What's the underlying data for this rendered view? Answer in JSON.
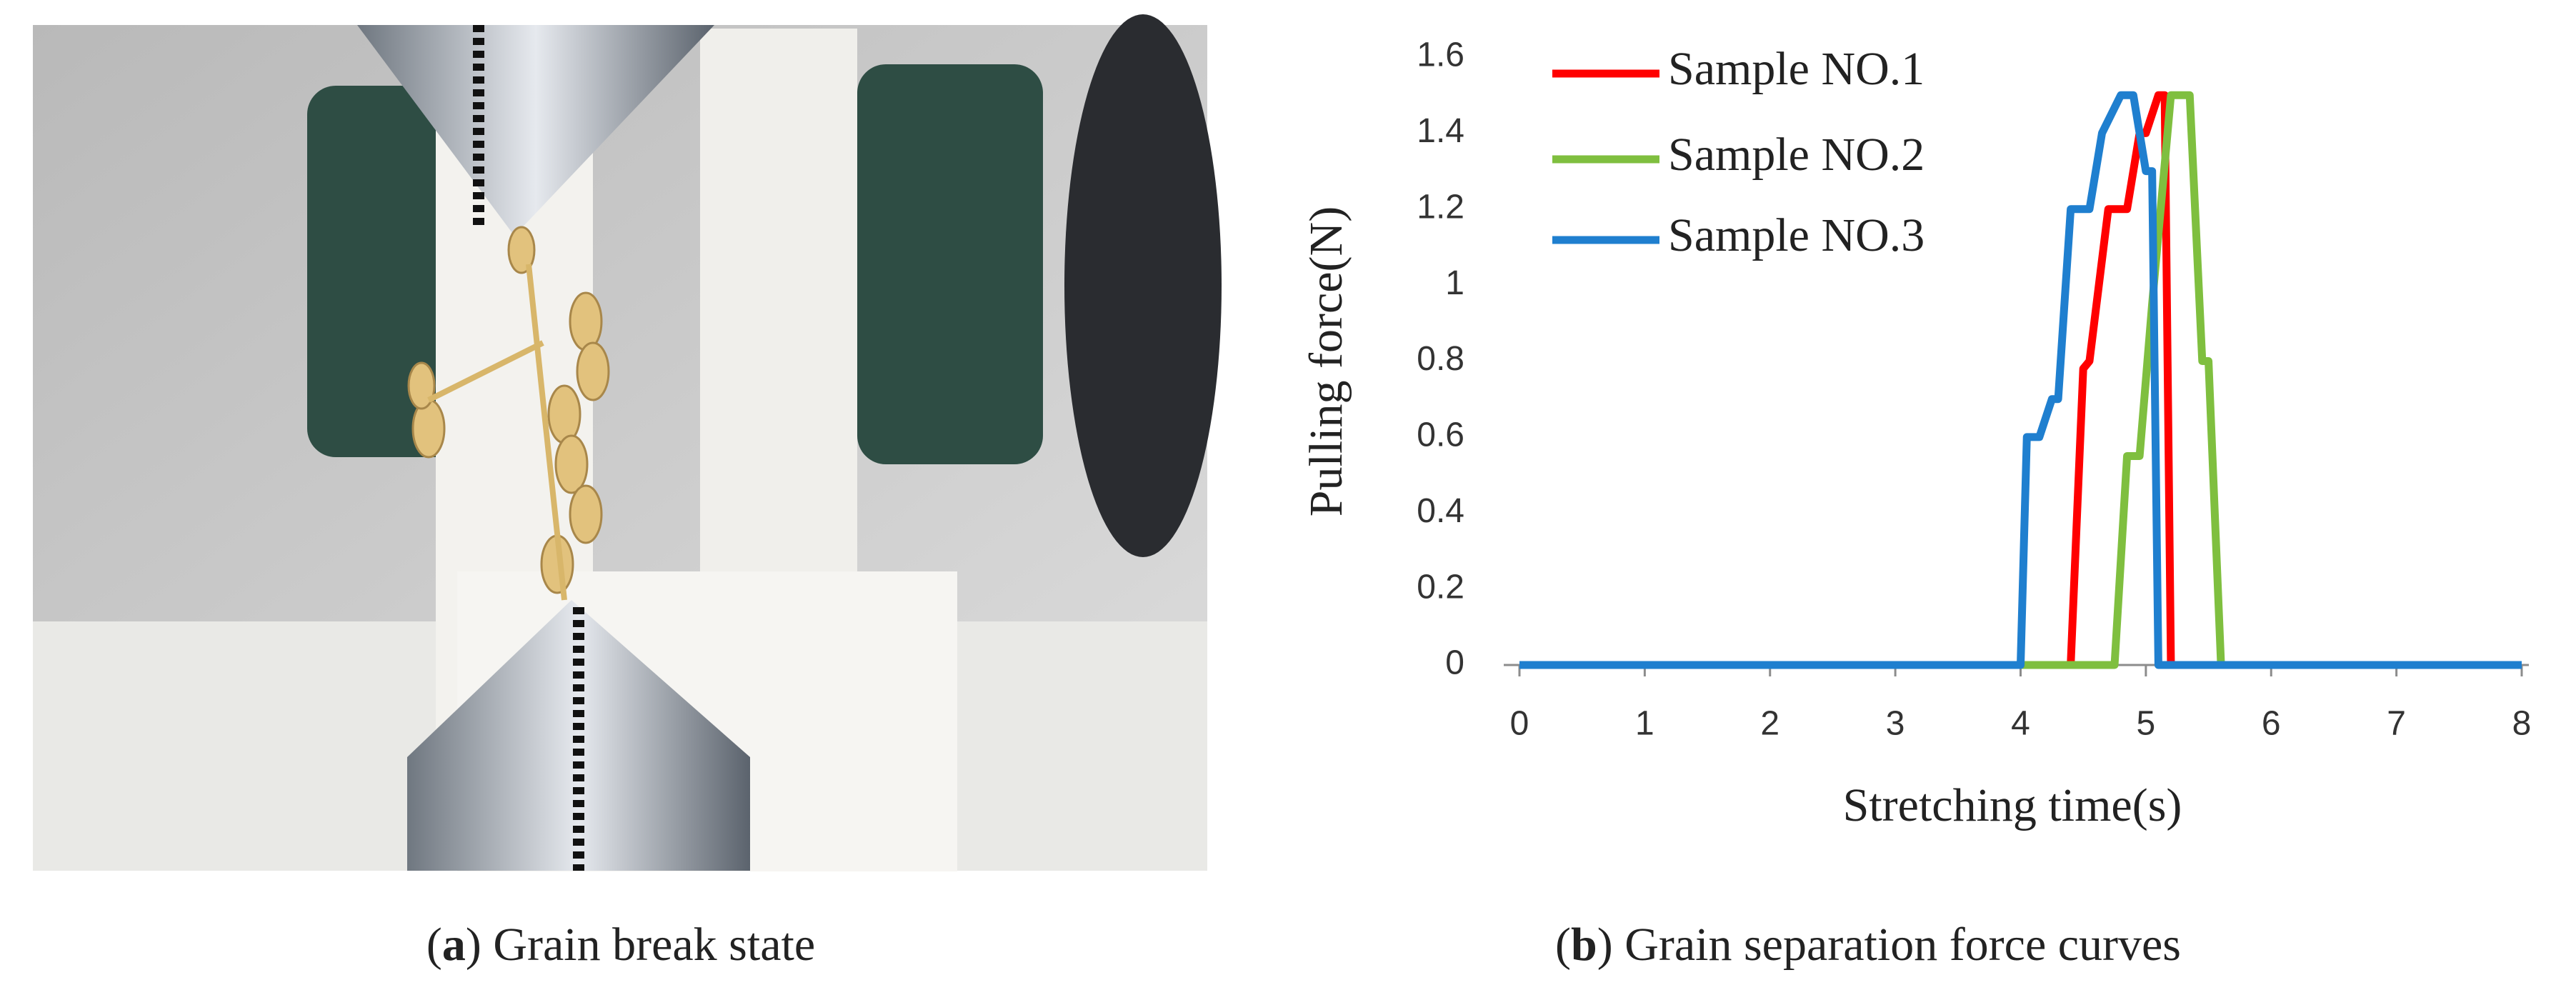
{
  "captions": [
    [
      "(",
      "a",
      ") Grain break state"
    ],
    [
      "(",
      "b",
      ") Grain separation force curves"
    ]
  ],
  "chart_data": {
    "type": "line",
    "xlabel": "Stretching time(s)",
    "ylabel": "Pulling  force(N)",
    "xlim": [
      0,
      8
    ],
    "xticks": [
      0,
      1,
      2,
      3,
      4,
      5,
      6,
      7,
      8
    ],
    "ylim": [
      0,
      1.6
    ],
    "yticks": [
      0,
      0.2,
      0.4,
      0.6,
      0.8,
      1,
      1.2,
      1.4,
      1.6
    ],
    "legend": "top-left",
    "series": [
      {
        "name": "Sample NO.1",
        "color": "#ff0000",
        "x": [
          0,
          4.4,
          4.5,
          4.55,
          4.7,
          4.85,
          4.95,
          5.0,
          5.1,
          5.15,
          5.2,
          8
        ],
        "values": [
          0,
          0,
          0.78,
          0.8,
          1.2,
          1.2,
          1.4,
          1.4,
          1.5,
          1.5,
          0,
          0
        ]
      },
      {
        "name": "Sample NO.2",
        "color": "#7fbf3f",
        "x": [
          0,
          4.75,
          4.85,
          4.95,
          5.05,
          5.2,
          5.35,
          5.45,
          5.5,
          5.6,
          8
        ],
        "values": [
          0,
          0,
          0.55,
          0.55,
          0.95,
          1.5,
          1.5,
          0.8,
          0.8,
          0,
          0
        ]
      },
      {
        "name": "Sample NO.3",
        "color": "#1f7fcf",
        "x": [
          0,
          4.0,
          4.05,
          4.15,
          4.25,
          4.3,
          4.4,
          4.55,
          4.65,
          4.8,
          4.9,
          5.0,
          5.05,
          5.1,
          8
        ],
        "values": [
          0,
          0,
          0.6,
          0.6,
          0.7,
          0.7,
          1.2,
          1.2,
          1.4,
          1.5,
          1.5,
          1.3,
          1.3,
          0,
          0
        ]
      }
    ]
  }
}
